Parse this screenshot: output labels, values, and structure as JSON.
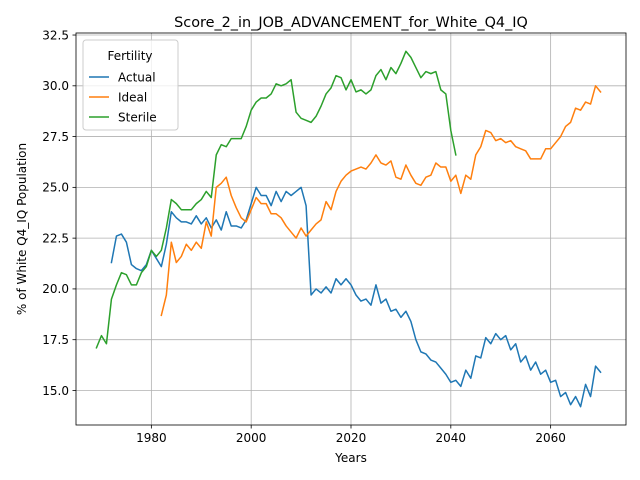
{
  "chart_data": {
    "type": "line",
    "title": "Score_2_in_JOB_ADVANCEMENT_for_White_Q4_IQ",
    "xlabel": "Years",
    "ylabel": "% of White Q4_IQ Population",
    "xlim": [
      1964.9,
      2075.1
    ],
    "ylim": [
      13.3,
      32.6
    ],
    "x_ticks": [
      1980,
      2000,
      2020,
      2040,
      2060
    ],
    "y_ticks": [
      15.0,
      17.5,
      20.0,
      22.5,
      25.0,
      27.5,
      30.0,
      32.5
    ],
    "x_tick_labels": [
      "1980",
      "2000",
      "2020",
      "2040",
      "2060"
    ],
    "y_tick_labels": [
      "15.0",
      "17.5",
      "20.0",
      "22.5",
      "25.0",
      "27.5",
      "30.0",
      "32.5"
    ],
    "grid": true,
    "legend": {
      "title": "Fertility",
      "placement": "top-left"
    },
    "series": [
      {
        "name": "Actual",
        "color": "#1f77b4",
        "x": [
          1972,
          1973,
          1974,
          1975,
          1976,
          1977,
          1978,
          1979,
          1980,
          1981,
          1982,
          1983,
          1984,
          1985,
          1986,
          1987,
          1988,
          1989,
          1990,
          1991,
          1992,
          1993,
          1994,
          1995,
          1996,
          1997,
          1998,
          1999,
          2000,
          2001,
          2002,
          2003,
          2004,
          2005,
          2006,
          2007,
          2008,
          2009,
          2010,
          2011,
          2012,
          2013,
          2014,
          2015,
          2016,
          2017,
          2018,
          2019,
          2020,
          2021,
          2022,
          2023,
          2024,
          2025,
          2026,
          2027,
          2028,
          2029,
          2030,
          2031,
          2032,
          2033,
          2034,
          2035,
          2036,
          2037,
          2038,
          2039,
          2040,
          2041,
          2042,
          2043,
          2044,
          2045,
          2046,
          2047,
          2048,
          2049,
          2050,
          2051,
          2052,
          2053,
          2054,
          2055,
          2056,
          2057,
          2058,
          2059,
          2060,
          2061,
          2062,
          2063,
          2064,
          2065,
          2066,
          2067,
          2068,
          2069,
          2070
        ],
        "values": [
          21.3,
          22.6,
          22.7,
          22.3,
          21.2,
          21.0,
          20.9,
          21.2,
          21.9,
          21.5,
          21.1,
          22.2,
          23.8,
          23.5,
          23.3,
          23.3,
          23.2,
          23.6,
          23.2,
          23.5,
          23.0,
          23.4,
          22.9,
          23.8,
          23.1,
          23.1,
          23.0,
          23.4,
          24.2,
          25.0,
          24.6,
          24.6,
          24.1,
          24.8,
          24.3,
          24.8,
          24.6,
          24.8,
          25.0,
          24.1,
          19.7,
          20.0,
          19.8,
          20.1,
          19.8,
          20.5,
          20.2,
          20.5,
          20.2,
          19.7,
          19.4,
          19.5,
          19.2,
          20.2,
          19.3,
          19.5,
          18.9,
          19.0,
          18.6,
          18.9,
          18.4,
          17.5,
          16.9,
          16.8,
          16.5,
          16.4,
          16.1,
          15.8,
          15.4,
          15.5,
          15.2,
          16.0,
          15.6,
          16.7,
          16.6,
          17.6,
          17.3,
          17.8,
          17.5,
          17.7,
          17.0,
          17.3,
          16.4,
          16.7,
          16.0,
          16.4,
          15.8,
          16.0,
          15.4,
          15.5,
          14.7,
          14.9,
          14.3,
          14.7,
          14.2,
          15.3,
          14.7,
          16.2,
          15.9
        ]
      },
      {
        "name": "Ideal",
        "color": "#ff7f0e",
        "x": [
          1982,
          1983,
          1984,
          1985,
          1986,
          1987,
          1988,
          1989,
          1990,
          1991,
          1992,
          1993,
          1994,
          1995,
          1996,
          1997,
          1998,
          1999,
          2000,
          2001,
          2002,
          2003,
          2004,
          2005,
          2006,
          2007,
          2008,
          2009,
          2010,
          2011,
          2012,
          2013,
          2014,
          2015,
          2016,
          2017,
          2018,
          2019,
          2020,
          2021,
          2022,
          2023,
          2024,
          2025,
          2026,
          2027,
          2028,
          2029,
          2030,
          2031,
          2032,
          2033,
          2034,
          2035,
          2036,
          2037,
          2038,
          2039,
          2040,
          2041,
          2042,
          2043,
          2044,
          2045,
          2046,
          2047,
          2048,
          2049,
          2050,
          2051,
          2052,
          2053,
          2054,
          2055,
          2056,
          2057,
          2058,
          2059,
          2060,
          2061,
          2062,
          2063,
          2064,
          2065,
          2066,
          2067,
          2068,
          2069,
          2070
        ],
        "values": [
          18.7,
          19.7,
          22.3,
          21.3,
          21.6,
          22.2,
          21.9,
          22.3,
          22.0,
          23.3,
          22.6,
          25.0,
          25.2,
          25.5,
          24.6,
          24.0,
          23.5,
          23.3,
          23.9,
          24.5,
          24.2,
          24.2,
          23.7,
          23.7,
          23.5,
          23.1,
          22.8,
          22.5,
          23.0,
          22.6,
          22.9,
          23.2,
          23.4,
          24.3,
          23.9,
          24.8,
          25.3,
          25.6,
          25.8,
          25.9,
          26.0,
          25.9,
          26.2,
          26.6,
          26.2,
          26.1,
          26.3,
          25.5,
          25.4,
          26.1,
          25.6,
          25.2,
          25.1,
          25.5,
          25.6,
          26.2,
          26.0,
          26.0,
          25.3,
          25.6,
          24.7,
          25.6,
          25.4,
          26.6,
          27.0,
          27.8,
          27.7,
          27.3,
          27.4,
          27.2,
          27.3,
          27.0,
          26.9,
          26.8,
          26.4,
          26.4,
          26.4,
          26.9,
          26.9,
          27.2,
          27.5,
          28.0,
          28.2,
          28.9,
          28.8,
          29.2,
          29.1,
          30.0,
          29.7
        ]
      },
      {
        "name": "Sterile",
        "color": "#2ca02c",
        "x": [
          1969,
          1970,
          1971,
          1972,
          1973,
          1974,
          1975,
          1976,
          1977,
          1978,
          1979,
          1980,
          1981,
          1982,
          1983,
          1984,
          1985,
          1986,
          1987,
          1988,
          1989,
          1990,
          1991,
          1992,
          1993,
          1994,
          1995,
          1996,
          1997,
          1998,
          1999,
          2000,
          2001,
          2002,
          2003,
          2004,
          2005,
          2006,
          2007,
          2008,
          2009,
          2010,
          2011,
          2012,
          2013,
          2014,
          2015,
          2016,
          2017,
          2018,
          2019,
          2020,
          2021,
          2022,
          2023,
          2024,
          2025,
          2026,
          2027,
          2028,
          2029,
          2030,
          2031,
          2032,
          2033,
          2034,
          2035,
          2036,
          2037,
          2038,
          2039,
          2040,
          2041
        ],
        "values": [
          17.1,
          17.7,
          17.3,
          19.5,
          20.2,
          20.8,
          20.7,
          20.2,
          20.2,
          20.8,
          21.1,
          21.9,
          21.6,
          21.9,
          23.0,
          24.4,
          24.2,
          23.9,
          23.9,
          23.9,
          24.2,
          24.4,
          24.8,
          24.5,
          26.6,
          27.1,
          27.0,
          27.4,
          27.4,
          27.4,
          28.0,
          28.8,
          29.2,
          29.4,
          29.4,
          29.6,
          30.1,
          30.0,
          30.1,
          30.3,
          28.7,
          28.4,
          28.3,
          28.2,
          28.5,
          29.0,
          29.6,
          29.9,
          30.5,
          30.4,
          29.8,
          30.3,
          29.7,
          29.8,
          29.6,
          29.8,
          30.5,
          30.8,
          30.3,
          30.9,
          30.6,
          31.1,
          31.7,
          31.4,
          30.9,
          30.4,
          30.7,
          30.6,
          30.7,
          29.8,
          29.6,
          27.8,
          26.6
        ]
      }
    ]
  }
}
